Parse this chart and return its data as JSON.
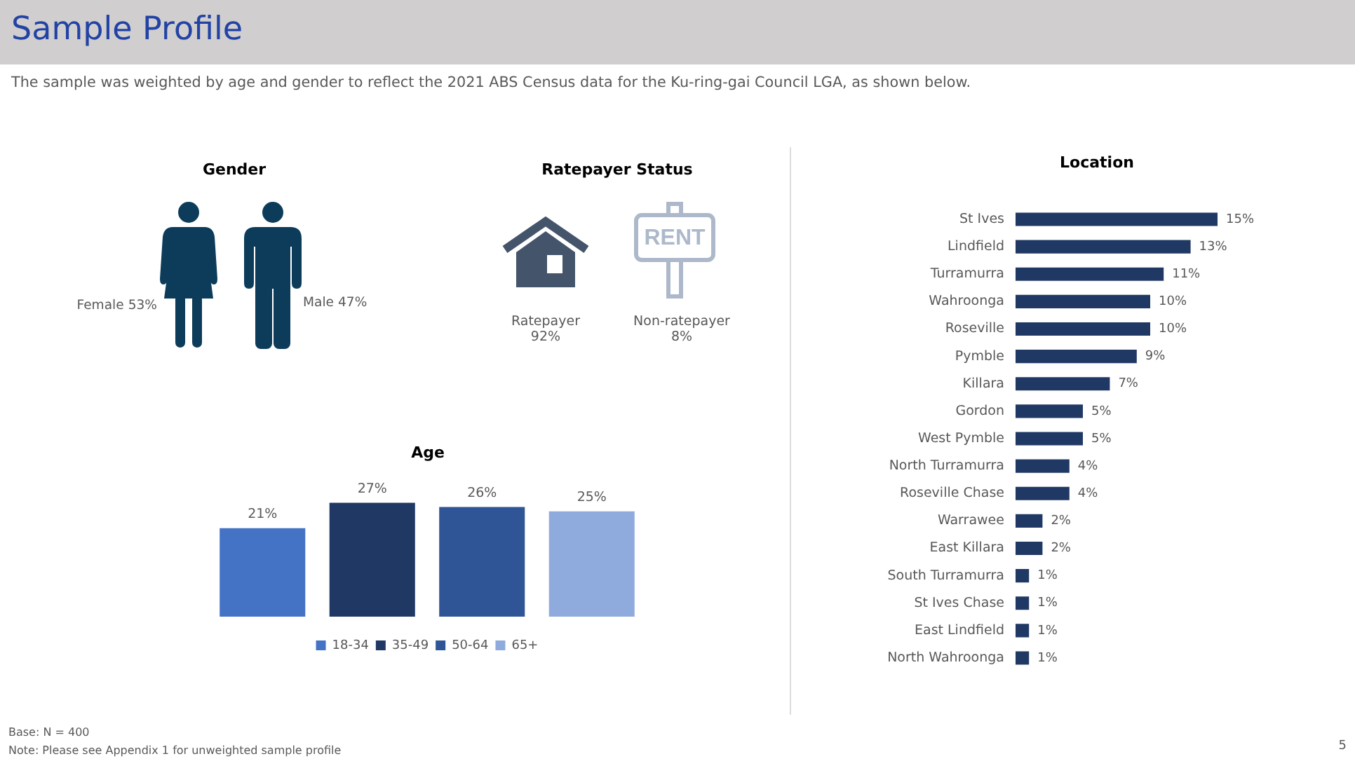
{
  "chart_data": [
    {
      "type": "other",
      "title": "Sample Profile",
      "subtitle": "The sample was weighted by age and gender to reflect the 2021 ABS Census data for the Ku-ring-gai Council LGA, as shown below.",
      "annotations": [
        "Base: N = 400",
        "Note: Please see Appendix 1 for unweighted sample profile",
        "5"
      ]
    },
    {
      "type": "other",
      "title": "Gender",
      "categories": [
        "Female",
        "Male"
      ],
      "value_labels": [
        "53%",
        "47%"
      ],
      "colors": [
        "#0c3c5a",
        "#0c3c5a"
      ]
    },
    {
      "type": "other",
      "title": "Ratepayer Status",
      "categories": [
        "Ratepayer",
        "Non-ratepayer"
      ],
      "value_labels": [
        "92%",
        "8%"
      ],
      "colors": [
        "#44546a",
        "#adb9ca"
      ],
      "annotations": [
        "RENT"
      ]
    },
    {
      "type": "bar",
      "title": "Age",
      "categories": [
        null
      ],
      "series": [
        {
          "name": "18-34",
          "color": "#4472c4",
          "values": [
            21
          ],
          "value_labels": [
            "21%"
          ]
        },
        {
          "name": "35-49",
          "color": "#203864",
          "values": [
            27
          ],
          "value_labels": [
            "27%"
          ]
        },
        {
          "name": "50-64",
          "color": "#2f5597",
          "values": [
            26
          ],
          "value_labels": [
            "26%"
          ]
        },
        {
          "name": "65+",
          "color": "#8faadc",
          "values": [
            25
          ],
          "value_labels": [
            "25%"
          ]
        }
      ],
      "legend": "bottom",
      "tick_labels": false
    },
    {
      "type": "bar",
      "orientation": "horizontal",
      "title": "Location",
      "categories": [
        "St Ives",
        "Lindfield",
        "Turramurra",
        "Wahroonga",
        "Roseville",
        "Pymble",
        "Killara",
        "Gordon",
        "West Pymble",
        "North Turramurra",
        "Roseville Chase",
        "Warrawee",
        "East Killara",
        "South Turramurra",
        "St Ives Chase",
        "East Lindfield",
        "North Wahroonga"
      ],
      "values": [
        15,
        13,
        11,
        10,
        10,
        9,
        7,
        5,
        5,
        4,
        4,
        2,
        2,
        1,
        1,
        1,
        1
      ],
      "color": "#203864",
      "value_labels": [
        "15%",
        "13%",
        "11%",
        "10%",
        "10%",
        "9%",
        "7%",
        "5%",
        "5%",
        "4%",
        "4%",
        "2%",
        "2%",
        "1%",
        "1%",
        "1%",
        "1%"
      ],
      "tick_labels": "y"
    }
  ]
}
